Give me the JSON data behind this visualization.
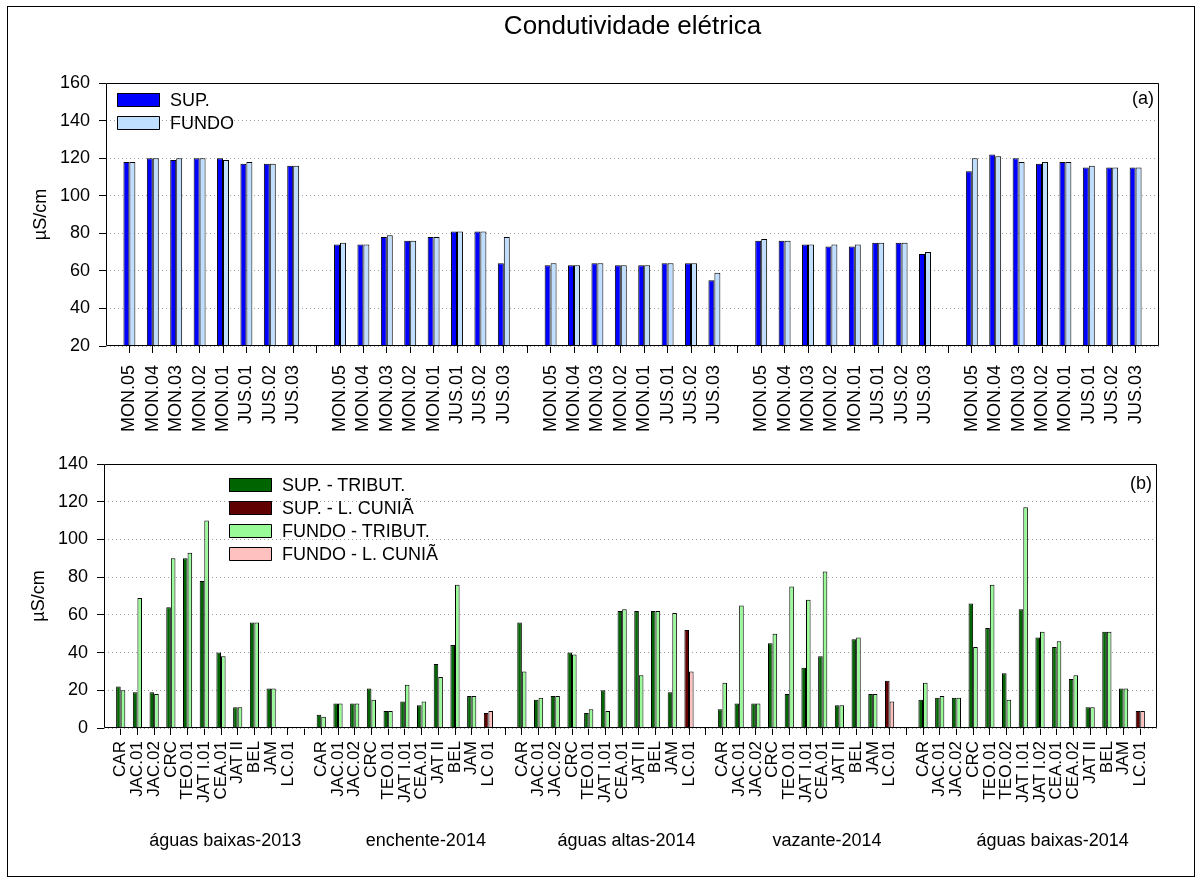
{
  "chart_data": [
    {
      "type": "bar",
      "title": "Condutividade elétrica",
      "ylabel": "µS/cm",
      "categories": [
        "MON.05",
        "MON.04",
        "MON.03",
        "MON.02",
        "MON.01",
        "JUS.01",
        "JUS.02",
        "JUS.03",
        null,
        "MON.05",
        "MON.04",
        "MON.03",
        "MON.02",
        "MON.01",
        "JUS.01",
        "JUS.02",
        "JUS.03",
        null,
        "MON.05",
        "MON.04",
        "MON.03",
        "MON.02",
        "MON.01",
        "JUS.01",
        "JUS.02",
        "JUS.03",
        null,
        "MON.05",
        "MON.04",
        "MON.03",
        "MON.02",
        "MON.01",
        "JUS.01",
        "JUS.02",
        "JUS.03",
        null,
        "MON.05",
        "MON.04",
        "MON.03",
        "MON.02",
        "MON.01",
        "JUS.01",
        "JUS.02",
        "JUS.03"
      ],
      "series": [
        {
          "name": "SUP.",
          "color": "#0000ff",
          "values": [
            118,
            120,
            119,
            120,
            120,
            117,
            117,
            116,
            null,
            74,
            74,
            78,
            76,
            78,
            81,
            81,
            64,
            null,
            63,
            63,
            64,
            63,
            63,
            64,
            64,
            55,
            null,
            76,
            76,
            74,
            73,
            73,
            75,
            75,
            69,
            null,
            113,
            122,
            120,
            117,
            118,
            115,
            115,
            115
          ]
        },
        {
          "name": "FUNDO",
          "color": "#c0deff",
          "values": [
            118,
            120,
            120,
            120,
            119,
            118,
            117,
            116,
            null,
            75,
            74,
            79,
            76,
            78,
            81,
            81,
            78,
            null,
            64,
            63,
            64,
            63,
            63,
            64,
            64,
            59,
            null,
            77,
            76,
            74,
            74,
            74,
            75,
            75,
            70,
            null,
            120,
            121,
            118,
            118,
            118,
            116,
            115,
            115
          ]
        }
      ],
      "ylim": [
        20,
        160
      ],
      "yticks": [
        20,
        40,
        60,
        80,
        100,
        120,
        140,
        160
      ],
      "grid": "y",
      "legend": "top left",
      "annotations": [
        "(a)"
      ]
    },
    {
      "type": "bar",
      "ylabel": "µS/cm",
      "categories": [
        "CAR",
        "JAC.01",
        "JAC.02",
        "CRC",
        "TEO.01",
        "JAT I.01",
        "CEA.01",
        "JAT II",
        "BEL",
        "JAM",
        "LC.01",
        null,
        "CAR",
        "JAC.01",
        "JAC.02",
        "CRC",
        "TEO.01",
        "JAT I.01",
        "CEA.01",
        "JAT II",
        "BEL",
        "JAM",
        "LC 01",
        null,
        "CAR",
        "JAC.01",
        "JAC.02",
        "CRC",
        "TEO.01",
        "JAT I.01",
        "CEA.01",
        "JAT II",
        "BEL",
        "JAM",
        "LC.01",
        null,
        "CAR",
        "JAC.01",
        "JAC.02",
        "CRC",
        "TEO.01",
        "JAT I.01",
        "CEA.01",
        "JAT II",
        "BEL",
        "JAM",
        "LC.01",
        null,
        "CAR",
        "JAC.01",
        "JAC.02",
        "CRC",
        "TEO.01",
        "TEO.02",
        "JAT I.01",
        "JAT I.02",
        "CEA.01",
        "CEA.02",
        "JAT II",
        "BEL",
        "JAM",
        "LC.01"
      ],
      "series": [
        {
          "name": "SUP. - TRIBUT.",
          "color": "#006400",
          "values": [
            22,
            19,
            19,
            64,
            90,
            78,
            40,
            11,
            56,
            21,
            null,
            null,
            7,
            13,
            13,
            21,
            9,
            14,
            12,
            34,
            44,
            17,
            null,
            null,
            56,
            15,
            17,
            40,
            8,
            20,
            62,
            62,
            62,
            19,
            null,
            null,
            10,
            13,
            13,
            45,
            18,
            32,
            38,
            12,
            47,
            18,
            null,
            null,
            15,
            16,
            16,
            66,
            53,
            29,
            63,
            48,
            43,
            26,
            11,
            51,
            21,
            null
          ]
        },
        {
          "name": "SUP. - L. CUNIÃ",
          "color": "#600000",
          "values": [
            null,
            null,
            null,
            null,
            null,
            null,
            null,
            null,
            null,
            null,
            null,
            null,
            null,
            null,
            null,
            null,
            null,
            null,
            null,
            null,
            null,
            null,
            8,
            null,
            null,
            null,
            null,
            null,
            null,
            null,
            null,
            null,
            null,
            null,
            52,
            null,
            null,
            null,
            null,
            null,
            null,
            null,
            null,
            null,
            null,
            null,
            25,
            null,
            null,
            null,
            null,
            null,
            null,
            null,
            null,
            null,
            null,
            null,
            null,
            null,
            null,
            9
          ]
        },
        {
          "name": "FUNDO - TRIBUT.",
          "color": "#98fb98",
          "values": [
            20,
            69,
            18,
            90,
            93,
            110,
            38,
            11,
            56,
            21,
            null,
            null,
            6,
            13,
            13,
            15,
            9,
            23,
            14,
            27,
            76,
            17,
            null,
            null,
            30,
            16,
            17,
            39,
            10,
            9,
            63,
            28,
            62,
            61,
            null,
            null,
            24,
            65,
            13,
            50,
            75,
            68,
            83,
            12,
            48,
            18,
            null,
            null,
            24,
            17,
            16,
            43,
            76,
            15,
            117,
            51,
            46,
            28,
            11,
            51,
            21,
            null
          ]
        },
        {
          "name": "FUNDO - L. CUNIÃ",
          "color": "#ffc0c0",
          "values": [
            null,
            null,
            null,
            null,
            null,
            null,
            null,
            null,
            null,
            null,
            null,
            null,
            null,
            null,
            null,
            null,
            null,
            null,
            null,
            null,
            null,
            null,
            9,
            null,
            null,
            null,
            null,
            null,
            null,
            null,
            null,
            null,
            null,
            null,
            30,
            null,
            null,
            null,
            null,
            null,
            null,
            null,
            null,
            null,
            null,
            null,
            14,
            null,
            null,
            null,
            null,
            null,
            null,
            null,
            null,
            null,
            null,
            null,
            null,
            null,
            null,
            9
          ]
        }
      ],
      "ylim": [
        0,
        140
      ],
      "yticks": [
        0,
        20,
        40,
        60,
        80,
        100,
        120,
        140
      ],
      "grid": "y",
      "legend": "top left",
      "annotations": [
        "(b)",
        "águas baixas-2013",
        "enchente-2014",
        "águas altas-2014",
        "vazante-2014",
        "águas baixas-2014"
      ]
    }
  ]
}
